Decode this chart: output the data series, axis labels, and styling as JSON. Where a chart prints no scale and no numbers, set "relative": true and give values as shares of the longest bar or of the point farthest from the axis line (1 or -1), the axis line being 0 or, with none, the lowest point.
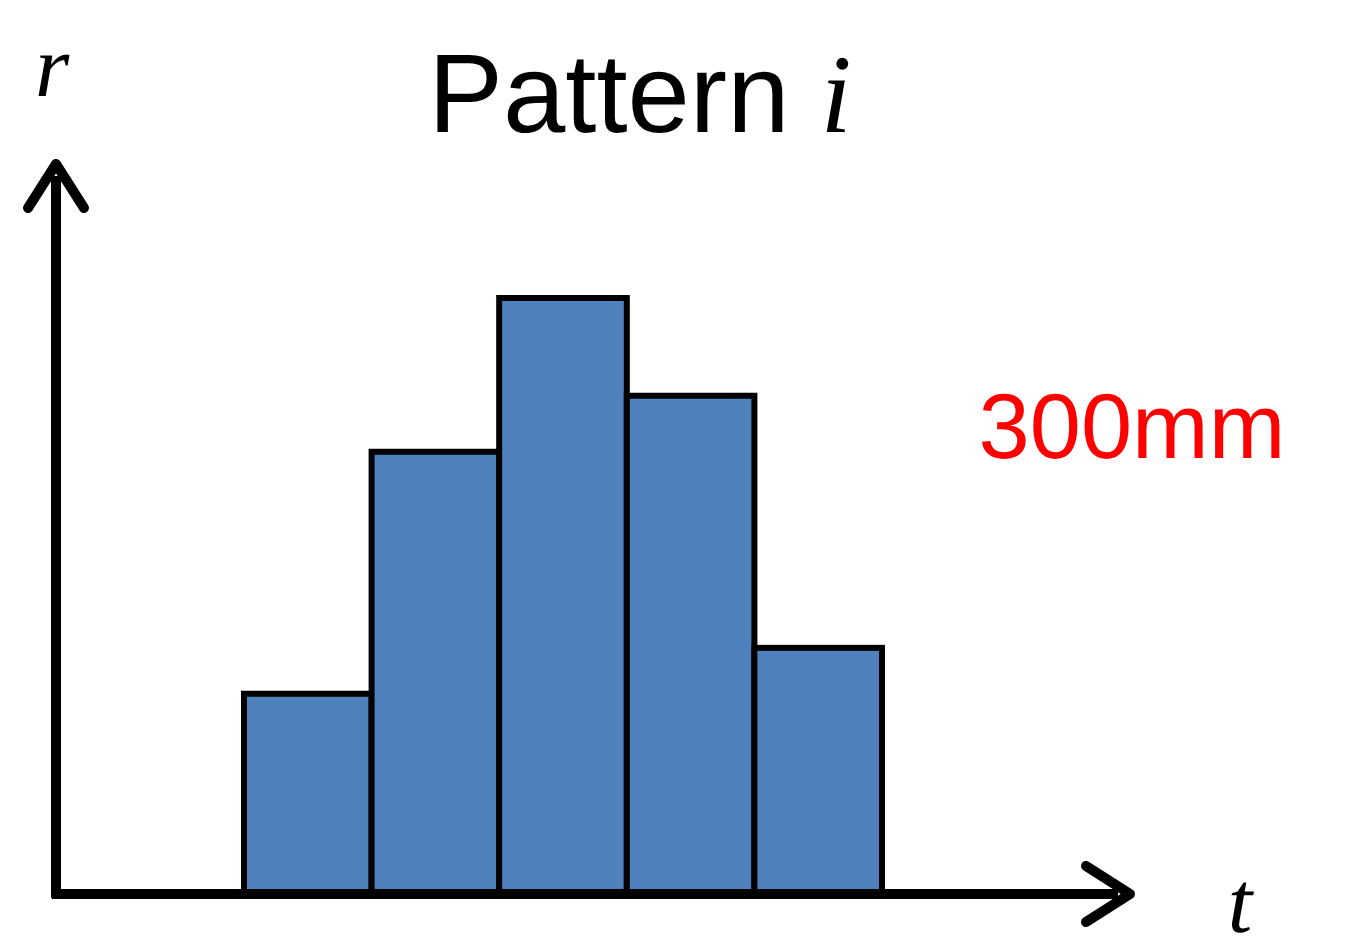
{
  "chart_data": {
    "type": "bar",
    "title": "Pattern i",
    "xlabel": "t",
    "ylabel": "r",
    "relative": true,
    "categories": [
      null,
      null,
      null,
      null,
      null
    ],
    "values": [
      0.336,
      0.742,
      1,
      0.836,
      0.413
    ],
    "color": "#4f81bd",
    "annotations": [
      "300mm"
    ]
  }
}
